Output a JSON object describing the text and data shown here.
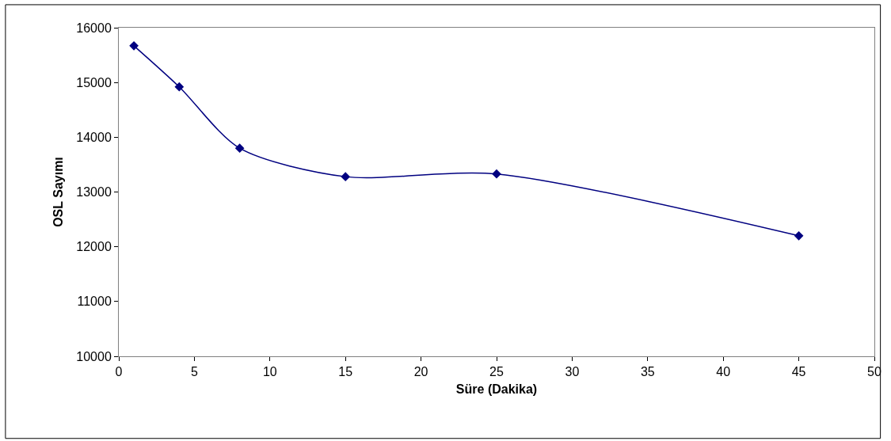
{
  "chart_data": {
    "type": "line",
    "xlabel": "Süre (Dakika)",
    "ylabel": "OSL Sayımı",
    "x": [
      1,
      4,
      8,
      15,
      25,
      45
    ],
    "series": [
      {
        "color": "#000080",
        "values": [
          15670,
          14920,
          13800,
          13280,
          13330,
          12200
        ]
      }
    ],
    "xlim": [
      0,
      50
    ],
    "xticks": [
      0,
      5,
      10,
      15,
      20,
      25,
      30,
      35,
      40,
      45,
      50
    ],
    "ylim": [
      10000,
      16000
    ],
    "yticks": [
      10000,
      11000,
      12000,
      13000,
      14000,
      15000,
      16000
    ],
    "marker": "diamond",
    "line_style": "solid"
  }
}
